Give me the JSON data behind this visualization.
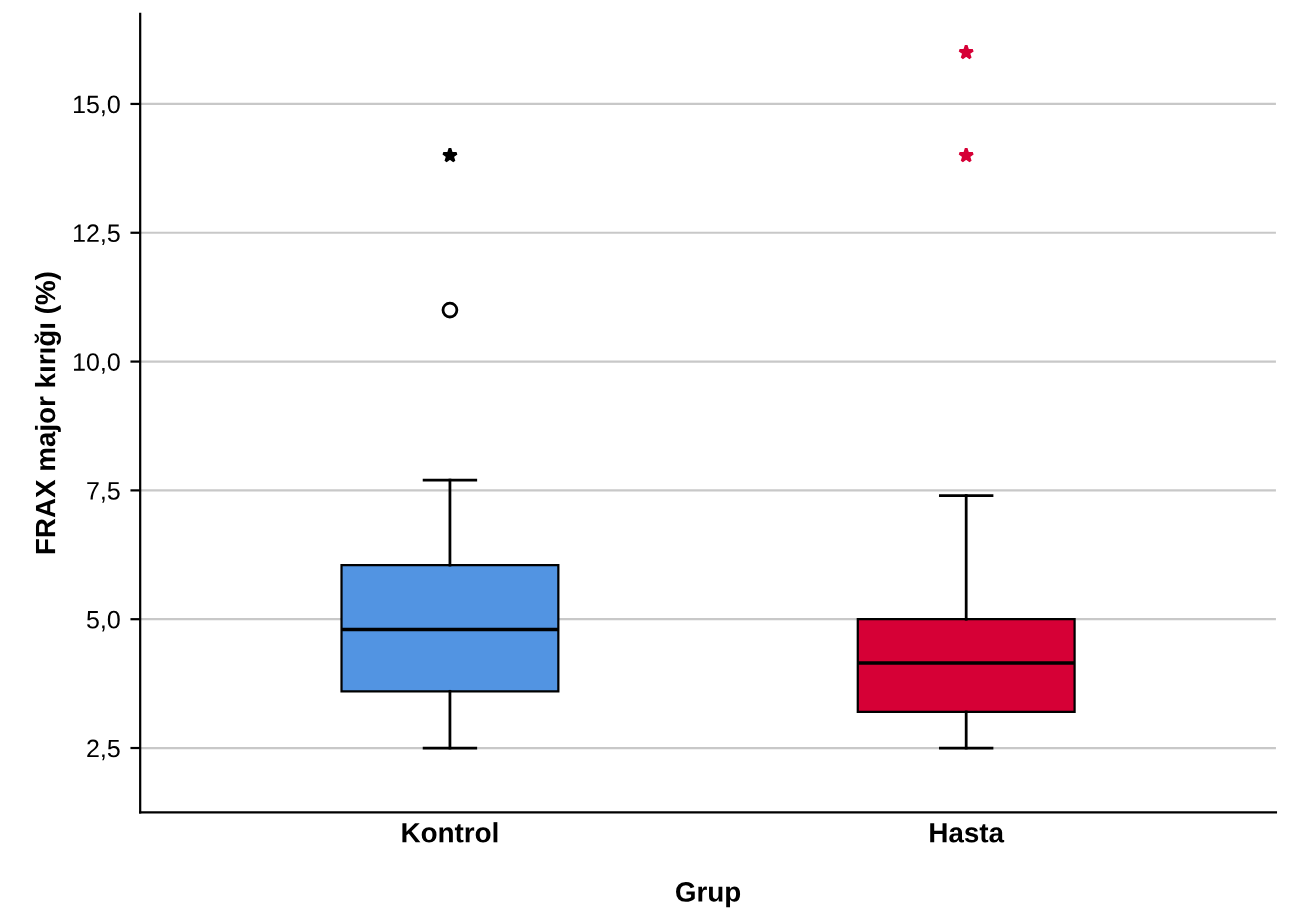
{
  "chart_data": {
    "type": "box",
    "xlabel": "Grup",
    "ylabel": "FRAX major kırığı (%)",
    "categories": [
      "Kontrol",
      "Hasta"
    ],
    "series": [
      {
        "colors": [
          "#5294e2",
          "#d60036"
        ],
        "boxes": [
          {
            "low": 2.5,
            "q1": 3.6,
            "median": 4.8,
            "q3": 6.05,
            "high": 7.7,
            "outliers": [
              11.0,
              14.0
            ]
          },
          {
            "low": 2.5,
            "q1": 3.2,
            "median": 4.15,
            "q3": 5.0,
            "high": 7.4,
            "outliers": [
              14.0,
              16.0
            ]
          }
        ]
      }
    ],
    "ylim": [
      1.25,
      16.75
    ],
    "yticks": [
      {
        "value": 2.5,
        "label": "2,5"
      },
      {
        "value": 5.0,
        "label": "5,0"
      },
      {
        "value": 7.5,
        "label": "7,5"
      },
      {
        "value": 10.0,
        "label": "10,0"
      },
      {
        "value": 12.5,
        "label": "12,5"
      },
      {
        "value": 15.0,
        "label": "15,0"
      }
    ],
    "grid": "y"
  }
}
